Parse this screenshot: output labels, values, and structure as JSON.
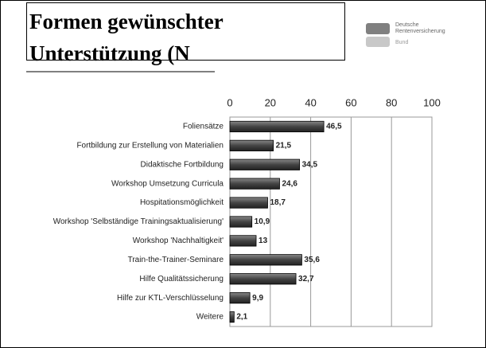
{
  "header": {
    "title_line1": "Formen gewünschter",
    "title_line2": "Unterstützung (N",
    "logo_line1": "Deutsche",
    "logo_line2": "Rentenversicherung",
    "logo_line3": "Bund"
  },
  "chart_data": {
    "type": "bar",
    "orientation": "horizontal",
    "categories": [
      "Foliensätze",
      "Fortbildung zur Erstellung von Materialien",
      "Didaktische Fortbildung",
      "Workshop Umsetzung Curricula",
      "Hospitationsmöglichkeit",
      "Workshop 'Selbständige Trainingsaktualisierung'",
      "Workshop 'Nachhaltigkeit'",
      "Train-the-Trainer-Seminare",
      "Hilfe Qualitätssicherung",
      "Hilfe zur KTL-Verschlüsselung",
      "Weitere"
    ],
    "values": [
      46.5,
      21.5,
      34.5,
      24.6,
      18.7,
      10.9,
      13,
      35.6,
      32.7,
      9.9,
      2.1
    ],
    "value_labels": [
      "46,5",
      "21,5",
      "34,5",
      "24,6",
      "18,7",
      "10,9",
      "13",
      "35,6",
      "32,7",
      "9,9",
      "2,1"
    ],
    "color": "#4d4d4d",
    "xlim": [
      0,
      100
    ],
    "xticks": [
      0,
      20,
      40,
      60,
      80,
      100
    ],
    "grid": true
  }
}
